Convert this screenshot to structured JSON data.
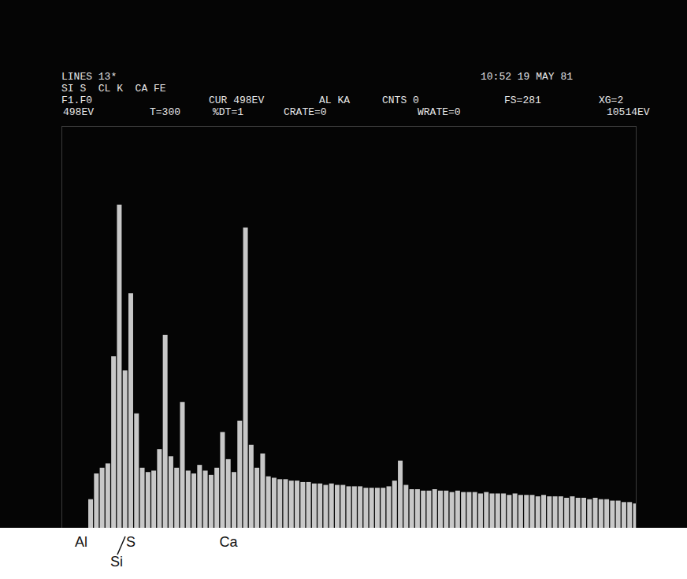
{
  "chart_data": {
    "type": "bar",
    "header": [
      [
        "LINES 13*",
        "10:52 19 MAY 81"
      ],
      [
        "SI S  CL K  CA FE"
      ],
      [
        "F1.F0",
        "CUR 498EV",
        "AL KA",
        "CNTS 0",
        "FS=281",
        "XG=2"
      ],
      [
        "498EV",
        "T=300",
        "%DT=1",
        "CRATE=0",
        "WRATE=0",
        "10514EV"
      ]
    ],
    "x": [
      500,
      600,
      700,
      800,
      900,
      1000,
      1100,
      1200,
      1300,
      1400,
      1500,
      1600,
      1700,
      1800,
      1900,
      2000,
      2100,
      2200,
      2300,
      2400,
      2500,
      2600,
      2700,
      2800,
      2900,
      3000,
      3100,
      3200,
      3300,
      3400,
      3500,
      3600,
      3700,
      3800,
      3900,
      4000,
      4100,
      4200,
      4300,
      4400,
      4500,
      4600,
      4700,
      4800,
      4900,
      5000,
      5100,
      5200,
      5300,
      5400,
      5500,
      5600,
      5700,
      5800,
      5900,
      6000,
      6100,
      6200,
      6300,
      6400,
      6500,
      6600,
      6700,
      6800,
      6900,
      7000,
      7100,
      7200,
      7300,
      7400,
      7500,
      7600,
      7700,
      7800,
      7900,
      8000,
      8100,
      8200,
      8300,
      8400,
      8500,
      8600,
      8700,
      8800,
      8900,
      9000,
      9100,
      9200,
      9300,
      9400,
      9500,
      9600,
      9700,
      9800,
      9900,
      10000,
      10100,
      10200,
      10300,
      10400,
      10500
    ],
    "values": [
      0,
      0,
      0,
      0,
      0,
      20,
      38,
      42,
      45,
      120,
      226,
      110,
      164,
      80,
      42,
      39,
      40,
      55,
      135,
      50,
      42,
      88,
      40,
      38,
      44,
      40,
      37,
      42,
      67,
      48,
      39,
      75,
      210,
      58,
      42,
      52,
      36,
      35,
      34,
      34,
      33,
      33,
      32,
      32,
      31,
      31,
      30,
      31,
      30,
      30,
      29,
      29,
      29,
      28,
      28,
      28,
      28,
      29,
      33,
      47,
      30,
      27,
      27,
      26,
      26,
      27,
      26,
      26,
      25,
      26,
      25,
      25,
      25,
      24,
      25,
      24,
      24,
      24,
      23,
      24,
      23,
      23,
      23,
      22,
      23,
      22,
      22,
      22,
      21,
      22,
      21,
      21,
      20,
      21,
      20,
      20,
      19,
      19,
      18,
      18,
      17
    ],
    "color": "#c8c8c8",
    "xlim": [
      498,
      10514
    ],
    "ylim": [
      0,
      281
    ],
    "tick_labels": false,
    "annotations": [
      {
        "text": "Al",
        "x": 841
      },
      {
        "text": "S",
        "x": 1707
      },
      {
        "text": "Si",
        "x": 1460
      },
      {
        "text": "Ca",
        "x": 3410
      }
    ]
  }
}
